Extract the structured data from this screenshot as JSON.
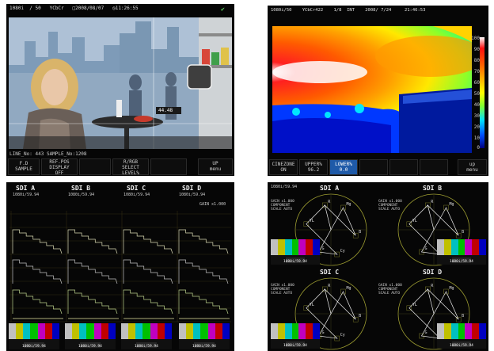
{
  "p1": {
    "status": {
      "format": "1080i",
      "rate": "50",
      "sampling": "YCbCr",
      "date": "2008/08/07",
      "time": "11:26:55"
    },
    "cursor_value": "44.48",
    "line_info": "LINE_No:  443  SAMPLE_No:1208",
    "softkeys": [
      {
        "line1": "F.D",
        "line2": "SAMPLE"
      },
      {
        "line1": "REF.POS",
        "line2": "DISPLAY",
        "line3": "OFF"
      },
      {
        "line1": "",
        "line2": ""
      },
      {
        "line1": "R/RGB",
        "line2": "SELECT",
        "line3": "LEVEL%"
      },
      {
        "line1": "",
        "line2": ""
      },
      {
        "line1": "UP",
        "line2": "menu"
      }
    ]
  },
  "p2": {
    "status": {
      "format": "1080i/50",
      "sampling": "YCbCr422",
      "page": "1/8",
      "mode": "INT",
      "date": "2008/ 7/24",
      "time": "21:46:53"
    },
    "scale": [
      "100",
      "90",
      "80",
      "70",
      "60",
      "50",
      "40",
      "30",
      "20",
      "10",
      "0"
    ],
    "softkeys": [
      {
        "line1": "CINEZONE",
        "line2": "ON"
      },
      {
        "line1": "UPPER%",
        "line2": "96.2"
      },
      {
        "line1": "LOWER%",
        "line2": "0.0"
      },
      {
        "line1": "",
        "line2": ""
      },
      {
        "line1": "",
        "line2": ""
      },
      {
        "line1": "",
        "line2": ""
      },
      {
        "line1": "up",
        "line2": "menu"
      }
    ]
  },
  "p3": {
    "labels": [
      "SDI A",
      "SDI B",
      "SDI C",
      "SDI D"
    ],
    "formats": [
      "1080i/59.94",
      "1080i/59.94",
      "1080i/59.94",
      "1080i/59.94"
    ],
    "gain_note": "GAIN x1.000",
    "bar_captions": [
      "1080i/59.94",
      "1080i/59.94",
      "1080i/59.94",
      "1080i/59.94"
    ]
  },
  "p4": {
    "labels": [
      "SDI A",
      "SDI B",
      "SDI C",
      "SDI D"
    ],
    "format": "1080i/59.94",
    "gain_lines": [
      "GAIN x1.000",
      "COMPONENT",
      "SCALE AUTO"
    ],
    "vector_targets": [
      "R",
      "Mg",
      "B",
      "Cy",
      "G",
      "YL"
    ],
    "bar_captions": [
      "1080i/59.94",
      "1080i/59.94",
      "1080i/59.94",
      "1080i/59.94"
    ]
  }
}
